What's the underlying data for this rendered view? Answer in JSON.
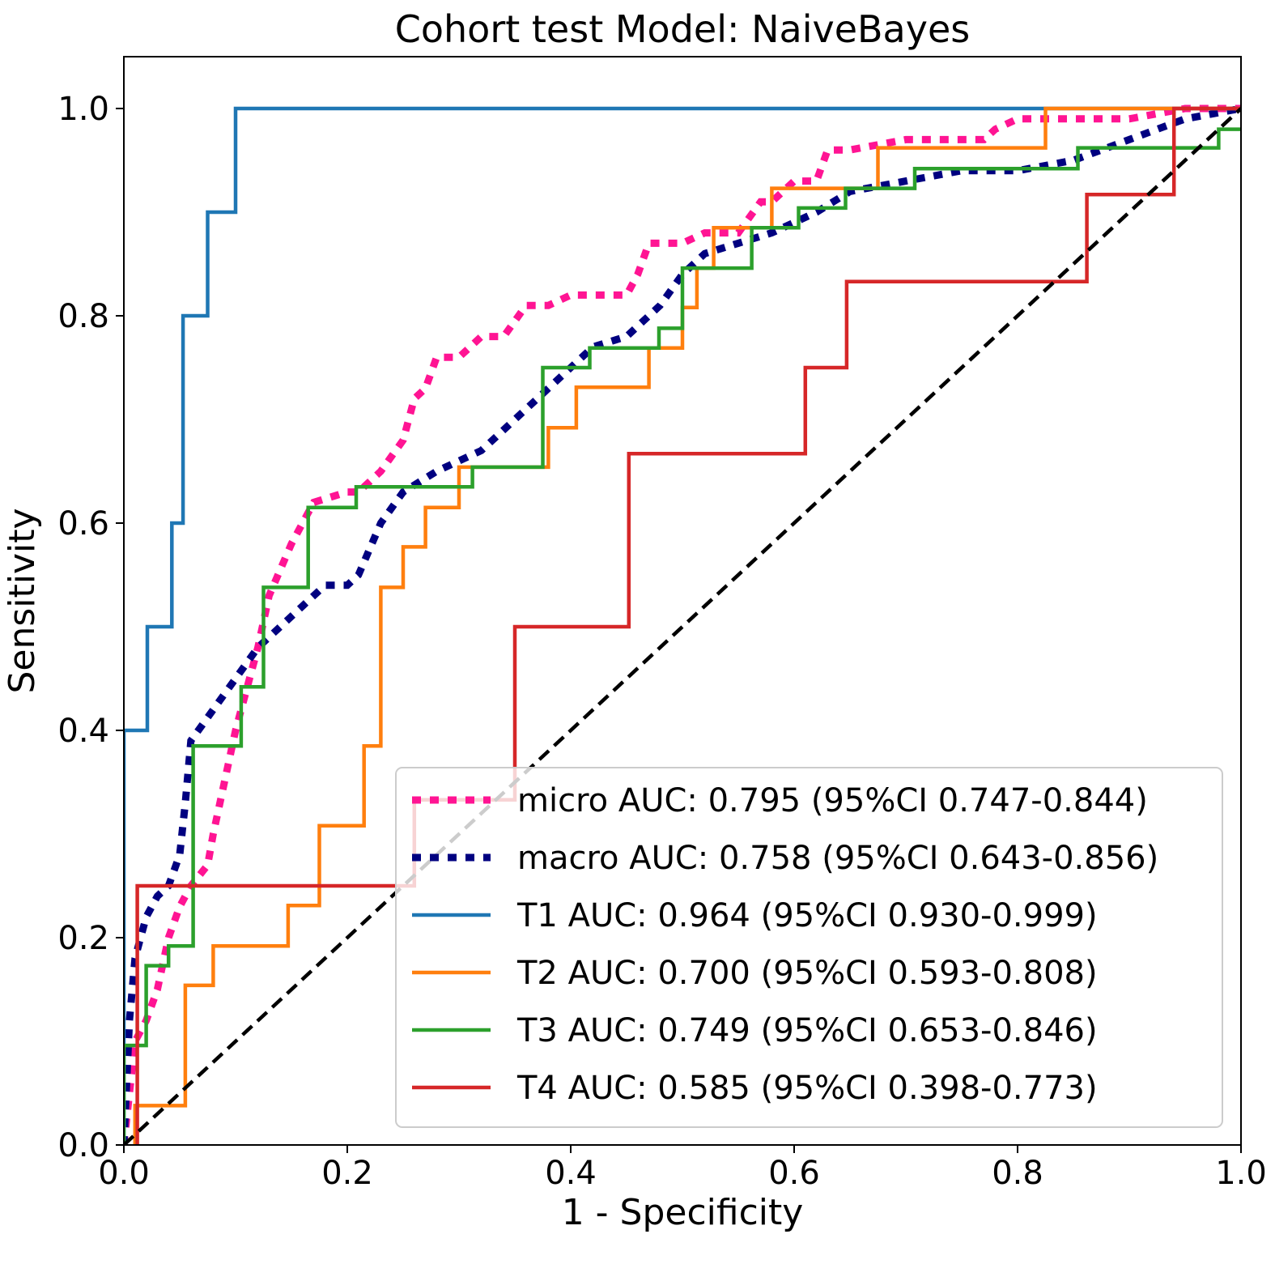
{
  "chart_data": {
    "type": "line",
    "title": "Cohort test Model: NaiveBayes",
    "xlabel": "1 - Specificity",
    "ylabel": "Sensitivity",
    "xlim": [
      0.0,
      1.0
    ],
    "ylim": [
      0.0,
      1.05
    ],
    "grid": false,
    "legend_position": "bottom-right",
    "x_ticks": [
      "0.0",
      "0.2",
      "0.4",
      "0.6",
      "0.8",
      "1.0"
    ],
    "y_ticks": [
      "0.0",
      "0.2",
      "0.4",
      "0.6",
      "0.8",
      "1.0"
    ],
    "x_tick_values": [
      0.0,
      0.2,
      0.4,
      0.6,
      0.8,
      1.0
    ],
    "y_tick_values": [
      0.0,
      0.2,
      0.4,
      0.6,
      0.8,
      1.0
    ],
    "series": [
      {
        "id": "micro",
        "name": "micro AUC: 0.795 (95%CI 0.747-0.844)",
        "color": "#ff1493",
        "style": "dotted",
        "x": [
          0,
          0.005,
          0.01,
          0.02,
          0.03,
          0.04,
          0.05,
          0.06,
          0.075,
          0.08,
          0.09,
          0.1,
          0.11,
          0.12,
          0.13,
          0.15,
          0.17,
          0.2,
          0.21,
          0.22,
          0.23,
          0.25,
          0.26,
          0.27,
          0.28,
          0.3,
          0.32,
          0.34,
          0.36,
          0.38,
          0.4,
          0.42,
          0.45,
          0.46,
          0.47,
          0.5,
          0.52,
          0.55,
          0.57,
          0.58,
          0.6,
          0.62,
          0.63,
          0.65,
          0.7,
          0.72,
          0.75,
          0.77,
          0.78,
          0.8,
          0.82,
          0.85,
          0.9,
          0.95,
          1.0
        ],
        "y": [
          0,
          0.05,
          0.1,
          0.12,
          0.15,
          0.2,
          0.23,
          0.25,
          0.27,
          0.3,
          0.35,
          0.4,
          0.44,
          0.48,
          0.53,
          0.58,
          0.62,
          0.63,
          0.63,
          0.64,
          0.65,
          0.68,
          0.72,
          0.73,
          0.76,
          0.76,
          0.78,
          0.78,
          0.81,
          0.81,
          0.82,
          0.82,
          0.82,
          0.84,
          0.87,
          0.87,
          0.88,
          0.88,
          0.91,
          0.91,
          0.93,
          0.93,
          0.96,
          0.96,
          0.97,
          0.97,
          0.97,
          0.97,
          0.98,
          0.99,
          0.99,
          0.99,
          0.99,
          1.0,
          1.0
        ]
      },
      {
        "id": "macro",
        "name": "macro AUC: 0.758 (95%CI 0.643-0.856)",
        "color": "#000080",
        "style": "dotted",
        "x": [
          0,
          0.005,
          0.01,
          0.02,
          0.03,
          0.04,
          0.05,
          0.055,
          0.06,
          0.08,
          0.1,
          0.12,
          0.14,
          0.16,
          0.18,
          0.2,
          0.21,
          0.23,
          0.25,
          0.28,
          0.3,
          0.32,
          0.35,
          0.38,
          0.4,
          0.42,
          0.45,
          0.48,
          0.5,
          0.52,
          0.55,
          0.58,
          0.6,
          0.62,
          0.65,
          0.7,
          0.75,
          0.8,
          0.85,
          0.9,
          0.95,
          1.0
        ],
        "y": [
          0,
          0.12,
          0.18,
          0.22,
          0.24,
          0.25,
          0.28,
          0.33,
          0.39,
          0.42,
          0.45,
          0.48,
          0.5,
          0.52,
          0.54,
          0.54,
          0.55,
          0.6,
          0.63,
          0.65,
          0.66,
          0.67,
          0.7,
          0.73,
          0.75,
          0.77,
          0.78,
          0.81,
          0.84,
          0.86,
          0.87,
          0.88,
          0.89,
          0.9,
          0.92,
          0.93,
          0.94,
          0.94,
          0.95,
          0.97,
          0.99,
          1.0
        ]
      },
      {
        "id": "T1",
        "name": "T1 AUC: 0.964 (95%CI 0.930-0.999)",
        "color": "#1f77b4",
        "style": "solid",
        "x": [
          0,
          0,
          0.021,
          0.021,
          0.043,
          0.043,
          0.053,
          0.053,
          0.075,
          0.075,
          0.1,
          0.1,
          0.82,
          1.0
        ],
        "y": [
          0,
          0.4,
          0.4,
          0.5,
          0.5,
          0.6,
          0.6,
          0.8,
          0.8,
          0.9,
          0.9,
          1.0,
          1.0,
          1.0
        ]
      },
      {
        "id": "T2",
        "name": "T2 AUC: 0.700 (95%CI 0.593-0.808)",
        "color": "#ff7f0e",
        "style": "solid",
        "x": [
          0.01,
          0.01,
          0.055,
          0.055,
          0.08,
          0.08,
          0.147,
          0.147,
          0.175,
          0.175,
          0.215,
          0.215,
          0.23,
          0.23,
          0.25,
          0.25,
          0.27,
          0.27,
          0.3,
          0.3,
          0.38,
          0.38,
          0.405,
          0.405,
          0.47,
          0.47,
          0.5,
          0.5,
          0.513,
          0.513,
          0.528,
          0.528,
          0.58,
          0.58,
          0.675,
          0.675,
          0.825,
          0.825,
          0.94,
          0.94,
          1.0
        ],
        "y": [
          0,
          0.038,
          0.038,
          0.154,
          0.154,
          0.192,
          0.192,
          0.231,
          0.231,
          0.308,
          0.308,
          0.385,
          0.385,
          0.538,
          0.538,
          0.577,
          0.577,
          0.615,
          0.615,
          0.654,
          0.654,
          0.692,
          0.692,
          0.731,
          0.731,
          0.769,
          0.769,
          0.808,
          0.808,
          0.846,
          0.846,
          0.885,
          0.885,
          0.923,
          0.923,
          0.962,
          0.962,
          1.0,
          1.0,
          1.0,
          1.0
        ]
      },
      {
        "id": "T3",
        "name": "T3 AUC: 0.749 (95%CI 0.653-0.846)",
        "color": "#2ca02c",
        "style": "solid",
        "x": [
          0,
          0,
          0.02,
          0.02,
          0.04,
          0.04,
          0.062,
          0.062,
          0.105,
          0.105,
          0.125,
          0.125,
          0.165,
          0.165,
          0.208,
          0.208,
          0.312,
          0.312,
          0.375,
          0.375,
          0.417,
          0.417,
          0.479,
          0.479,
          0.5,
          0.5,
          0.562,
          0.562,
          0.604,
          0.604,
          0.646,
          0.646,
          0.708,
          0.708,
          0.854,
          0.854,
          0.98,
          0.98,
          1.0
        ],
        "y": [
          0,
          0.096,
          0.096,
          0.173,
          0.173,
          0.192,
          0.192,
          0.385,
          0.385,
          0.442,
          0.442,
          0.538,
          0.538,
          0.615,
          0.615,
          0.635,
          0.635,
          0.654,
          0.654,
          0.75,
          0.75,
          0.769,
          0.769,
          0.788,
          0.788,
          0.846,
          0.846,
          0.885,
          0.885,
          0.904,
          0.904,
          0.923,
          0.923,
          0.942,
          0.942,
          0.962,
          0.962,
          0.98,
          0.98
        ]
      },
      {
        "id": "T4",
        "name": "T4 AUC: 0.585 (95%CI 0.398-0.773)",
        "color": "#d62728",
        "style": "solid",
        "x": [
          0.012,
          0.012,
          0.26,
          0.26,
          0.35,
          0.35,
          0.452,
          0.452,
          0.61,
          0.61,
          0.647,
          0.647,
          0.862,
          0.862,
          0.94,
          0.94,
          1.0
        ],
        "y": [
          0,
          0.25,
          0.25,
          0.333,
          0.333,
          0.5,
          0.5,
          0.667,
          0.667,
          0.75,
          0.75,
          0.833,
          0.833,
          0.917,
          0.917,
          1.0,
          1.0
        ]
      }
    ],
    "reference_line": {
      "x": [
        0,
        1
      ],
      "y": [
        0,
        1
      ],
      "color": "#000000",
      "style": "dashed"
    }
  }
}
